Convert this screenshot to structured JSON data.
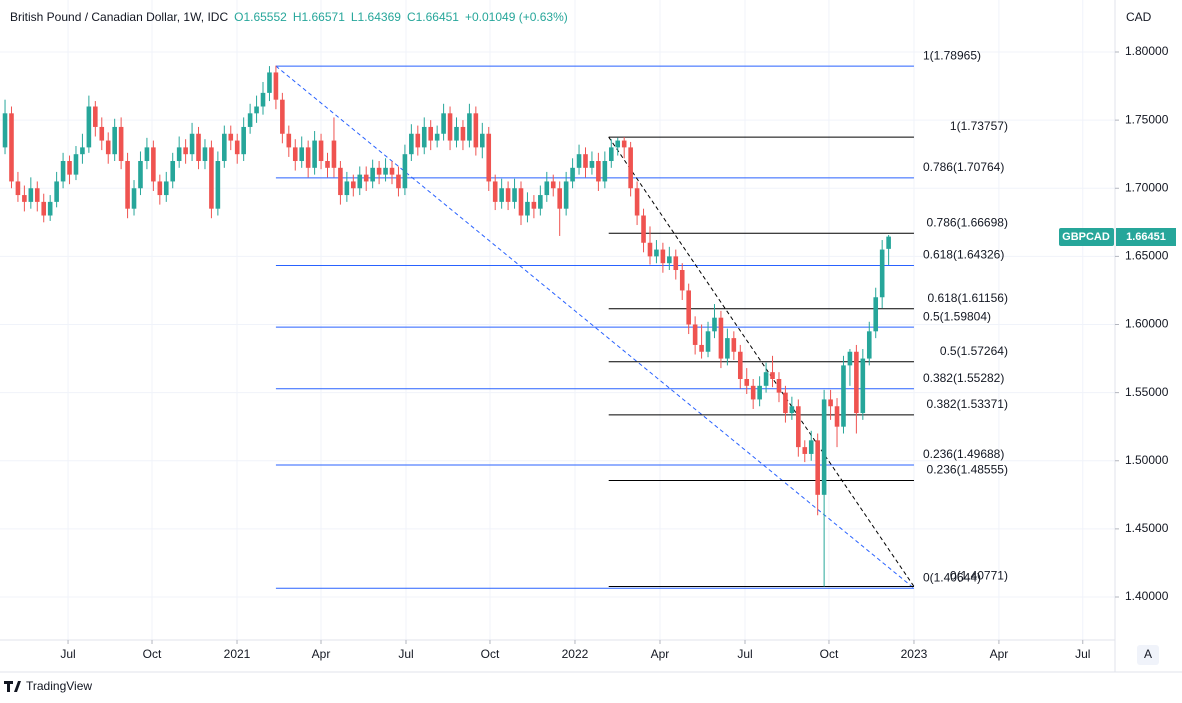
{
  "chart_data": {
    "type": "candlestick",
    "header": {
      "symbol": "British Pound / Canadian Dollar, 1W, IDC",
      "ohlc": [
        "O1.65552",
        "H1.66571",
        "L1.64369",
        "C1.66451",
        "+0.01049 (+0.63%)"
      ]
    },
    "currency": "CAD",
    "ticker": "GBPCAD",
    "last_price": {
      "value": 1.66451,
      "label": "1.66451"
    },
    "brand": "TradingView",
    "scale_button": "A",
    "up_color": "#26a69a",
    "down_color": "#ef5350",
    "grid": true,
    "xlim": [
      -0.78,
      172.1
    ],
    "xticks": [
      {
        "value": 9.77,
        "label": "Jul"
      },
      {
        "value": 22.79,
        "label": "Oct"
      },
      {
        "value": 35.97,
        "label": "2021"
      },
      {
        "value": 48.99,
        "label": "Apr"
      },
      {
        "value": 62.17,
        "label": "Jul"
      },
      {
        "value": 75.19,
        "label": "Oct"
      },
      {
        "value": 88.37,
        "label": "2022"
      },
      {
        "value": 101.55,
        "label": "Apr"
      },
      {
        "value": 114.73,
        "label": "Jul"
      },
      {
        "value": 127.75,
        "label": "Oct"
      },
      {
        "value": 140.93,
        "label": "2023"
      },
      {
        "value": 154.1,
        "label": "Apr"
      },
      {
        "value": 167.1,
        "label": "Jul"
      }
    ],
    "ylim": [
      1.36844,
      1.83817
    ],
    "yticks": [
      {
        "value": 1.4,
        "label": "1.40000"
      },
      {
        "value": 1.45,
        "label": "1.45000"
      },
      {
        "value": 1.5,
        "label": "1.50000"
      },
      {
        "value": 1.55,
        "label": "1.55000"
      },
      {
        "value": 1.6,
        "label": "1.60000"
      },
      {
        "value": 1.65,
        "label": "1.65000"
      },
      {
        "value": 1.7,
        "label": "1.70000"
      },
      {
        "value": 1.75,
        "label": "1.75000"
      },
      {
        "value": 1.8,
        "label": "1.80000"
      }
    ],
    "fib_retracements": [
      {
        "color": "#2962ff",
        "start": 42.0,
        "end": 140.93,
        "levels": [
          {
            "value": 1.78965,
            "label": "1(1.78965)"
          },
          {
            "value": 1.70764,
            "label": "0.786(1.70764)"
          },
          {
            "value": 1.64326,
            "label": "0.618(1.64326)"
          },
          {
            "value": 1.59804,
            "label": "0.5(1.59804)"
          },
          {
            "value": 1.55282,
            "label": "0.382(1.55282)"
          },
          {
            "value": 1.49688,
            "label": "0.236(1.49688)"
          },
          {
            "value": 1.40644,
            "label": "0(1.40644)"
          }
        ]
      },
      {
        "color": "#000000",
        "start": 93.6,
        "end": 140.93,
        "levels": [
          {
            "value": 1.73757,
            "label": "1(1.73757)"
          },
          {
            "value": 1.66698,
            "label": "0.786(1.66698)"
          },
          {
            "value": 1.61156,
            "label": "0.618(1.61156)"
          },
          {
            "value": 1.57264,
            "label": "0.5(1.57264)"
          },
          {
            "value": 1.53371,
            "label": "0.382(1.53371)"
          },
          {
            "value": 1.48555,
            "label": "0.236(1.48555)"
          },
          {
            "value": 1.40771,
            "label": "0(1.40771)"
          }
        ]
      }
    ],
    "ohlc": [
      [
        1.73,
        1.765,
        1.725,
        1.755
      ],
      [
        1.755,
        1.76,
        1.7,
        1.705
      ],
      [
        1.705,
        1.712,
        1.69,
        1.695
      ],
      [
        1.695,
        1.702,
        1.683,
        1.69
      ],
      [
        1.69,
        1.708,
        1.685,
        1.7
      ],
      [
        1.7,
        1.705,
        1.683,
        1.69
      ],
      [
        1.69,
        1.696,
        1.675,
        1.68
      ],
      [
        1.68,
        1.695,
        1.676,
        1.69
      ],
      [
        1.69,
        1.712,
        1.686,
        1.705
      ],
      [
        1.705,
        1.726,
        1.7,
        1.72
      ],
      [
        1.72,
        1.724,
        1.703,
        1.71
      ],
      [
        1.71,
        1.731,
        1.706,
        1.725
      ],
      [
        1.725,
        1.74,
        1.718,
        1.73
      ],
      [
        1.73,
        1.768,
        1.726,
        1.76
      ],
      [
        1.76,
        1.764,
        1.738,
        1.745
      ],
      [
        1.745,
        1.752,
        1.728,
        1.735
      ],
      [
        1.735,
        1.741,
        1.718,
        1.725
      ],
      [
        1.725,
        1.751,
        1.72,
        1.745
      ],
      [
        1.745,
        1.752,
        1.714,
        1.72
      ],
      [
        1.72,
        1.726,
        1.678,
        1.685
      ],
      [
        1.685,
        1.706,
        1.68,
        1.7
      ],
      [
        1.7,
        1.727,
        1.695,
        1.72
      ],
      [
        1.72,
        1.737,
        1.714,
        1.73
      ],
      [
        1.73,
        1.735,
        1.698,
        1.705
      ],
      [
        1.705,
        1.71,
        1.688,
        1.695
      ],
      [
        1.695,
        1.712,
        1.69,
        1.705
      ],
      [
        1.705,
        1.726,
        1.7,
        1.72
      ],
      [
        1.72,
        1.738,
        1.715,
        1.73
      ],
      [
        1.73,
        1.736,
        1.718,
        1.725
      ],
      [
        1.725,
        1.748,
        1.72,
        1.74
      ],
      [
        1.74,
        1.745,
        1.714,
        1.72
      ],
      [
        1.72,
        1.736,
        1.714,
        1.73
      ],
      [
        1.73,
        1.735,
        1.678,
        1.685
      ],
      [
        1.685,
        1.727,
        1.68,
        1.72
      ],
      [
        1.72,
        1.746,
        1.715,
        1.74
      ],
      [
        1.74,
        1.746,
        1.728,
        1.735
      ],
      [
        1.735,
        1.74,
        1.718,
        1.725
      ],
      [
        1.725,
        1.752,
        1.72,
        1.745
      ],
      [
        1.745,
        1.762,
        1.74,
        1.755
      ],
      [
        1.755,
        1.768,
        1.748,
        1.76
      ],
      [
        1.76,
        1.778,
        1.754,
        1.77
      ],
      [
        1.77,
        1.78965,
        1.764,
        1.785
      ],
      [
        1.785,
        1.79,
        1.758,
        1.765
      ],
      [
        1.765,
        1.77,
        1.733,
        1.74
      ],
      [
        1.74,
        1.746,
        1.723,
        1.73
      ],
      [
        1.73,
        1.736,
        1.713,
        1.72
      ],
      [
        1.72,
        1.738,
        1.715,
        1.73
      ],
      [
        1.73,
        1.735,
        1.708,
        1.715
      ],
      [
        1.715,
        1.742,
        1.71,
        1.735
      ],
      [
        1.735,
        1.74,
        1.714,
        1.72
      ],
      [
        1.72,
        1.726,
        1.708,
        1.715
      ],
      [
        1.735,
        1.752,
        1.708,
        1.715
      ],
      [
        1.715,
        1.72,
        1.688,
        1.695
      ],
      [
        1.695,
        1.712,
        1.69,
        1.705
      ],
      [
        1.705,
        1.71,
        1.694,
        1.7
      ],
      [
        1.7,
        1.716,
        1.695,
        1.71
      ],
      [
        1.71,
        1.716,
        1.698,
        1.705
      ],
      [
        1.705,
        1.721,
        1.7,
        1.715
      ],
      [
        1.715,
        1.72,
        1.703,
        1.71
      ],
      [
        1.71,
        1.722,
        1.705,
        1.715
      ],
      [
        1.715,
        1.72,
        1.703,
        1.71
      ],
      [
        1.71,
        1.716,
        1.694,
        1.7
      ],
      [
        1.7,
        1.732,
        1.695,
        1.725
      ],
      [
        1.725,
        1.747,
        1.72,
        1.74
      ],
      [
        1.74,
        1.746,
        1.724,
        1.73
      ],
      [
        1.73,
        1.752,
        1.725,
        1.745
      ],
      [
        1.745,
        1.75,
        1.728,
        1.735
      ],
      [
        1.735,
        1.746,
        1.73,
        1.74
      ],
      [
        1.74,
        1.762,
        1.735,
        1.755
      ],
      [
        1.755,
        1.76,
        1.728,
        1.735
      ],
      [
        1.735,
        1.752,
        1.73,
        1.745
      ],
      [
        1.745,
        1.75,
        1.728,
        1.735
      ],
      [
        1.735,
        1.762,
        1.73,
        1.755
      ],
      [
        1.755,
        1.76,
        1.724,
        1.73
      ],
      [
        1.73,
        1.748,
        1.722,
        1.74
      ],
      [
        1.74,
        1.745,
        1.698,
        1.705
      ],
      [
        1.705,
        1.71,
        1.684,
        1.69
      ],
      [
        1.69,
        1.707,
        1.685,
        1.7
      ],
      [
        1.7,
        1.705,
        1.684,
        1.69
      ],
      [
        1.69,
        1.707,
        1.685,
        1.7
      ],
      [
        1.7,
        1.705,
        1.673,
        1.68
      ],
      [
        1.68,
        1.697,
        1.675,
        1.69
      ],
      [
        1.69,
        1.695,
        1.678,
        1.685
      ],
      [
        1.685,
        1.702,
        1.68,
        1.695
      ],
      [
        1.695,
        1.712,
        1.69,
        1.705
      ],
      [
        1.705,
        1.71,
        1.694,
        1.7
      ],
      [
        1.7,
        1.705,
        1.665,
        1.685
      ],
      [
        1.685,
        1.712,
        1.68,
        1.705
      ],
      [
        1.705,
        1.722,
        1.7,
        1.715
      ],
      [
        1.715,
        1.732,
        1.71,
        1.725
      ],
      [
        1.725,
        1.73,
        1.708,
        1.715
      ],
      [
        1.715,
        1.727,
        1.71,
        1.72
      ],
      [
        1.72,
        1.726,
        1.698,
        1.705
      ],
      [
        1.705,
        1.727,
        1.7,
        1.72
      ],
      [
        1.72,
        1.736,
        1.715,
        1.73
      ],
      [
        1.73,
        1.737,
        1.724,
        1.735
      ],
      [
        1.735,
        1.73757,
        1.722,
        1.73
      ],
      [
        1.73,
        1.734,
        1.694,
        1.7
      ],
      [
        1.7,
        1.705,
        1.673,
        1.68
      ],
      [
        1.68,
        1.685,
        1.653,
        1.66
      ],
      [
        1.66,
        1.672,
        1.644,
        1.65
      ],
      [
        1.65,
        1.662,
        1.645,
        1.655
      ],
      [
        1.655,
        1.66,
        1.638,
        1.645
      ],
      [
        1.645,
        1.657,
        1.64,
        1.65
      ],
      [
        1.65,
        1.655,
        1.633,
        1.64
      ],
      [
        1.64,
        1.645,
        1.618,
        1.625
      ],
      [
        1.625,
        1.63,
        1.593,
        1.6
      ],
      [
        1.6,
        1.606,
        1.578,
        1.585
      ],
      [
        1.585,
        1.6,
        1.575,
        1.58
      ],
      [
        1.58,
        1.602,
        1.576,
        1.595
      ],
      [
        1.595,
        1.615,
        1.59,
        1.605
      ],
      [
        1.605,
        1.61,
        1.568,
        1.575
      ],
      [
        1.575,
        1.597,
        1.57,
        1.59
      ],
      [
        1.59,
        1.595,
        1.574,
        1.58
      ],
      [
        1.58,
        1.585,
        1.553,
        1.56
      ],
      [
        1.56,
        1.568,
        1.549,
        1.555
      ],
      [
        1.555,
        1.56,
        1.538,
        1.545
      ],
      [
        1.545,
        1.562,
        1.54,
        1.555
      ],
      [
        1.555,
        1.572,
        1.55,
        1.565
      ],
      [
        1.565,
        1.577,
        1.554,
        1.56
      ],
      [
        1.56,
        1.565,
        1.543,
        1.55
      ],
      [
        1.55,
        1.555,
        1.528,
        1.535
      ],
      [
        1.535,
        1.547,
        1.53,
        1.54
      ],
      [
        1.54,
        1.545,
        1.503,
        1.51
      ],
      [
        1.51,
        1.515,
        1.499,
        1.505
      ],
      [
        1.505,
        1.522,
        1.5,
        1.515
      ],
      [
        1.515,
        1.52,
        1.46,
        1.475
      ],
      [
        1.475,
        1.552,
        1.40771,
        1.545
      ],
      [
        1.545,
        1.552,
        1.53,
        1.54
      ],
      [
        1.54,
        1.546,
        1.51,
        1.525
      ],
      [
        1.525,
        1.577,
        1.52,
        1.57
      ],
      [
        1.57,
        1.582,
        1.555,
        1.58
      ],
      [
        1.58,
        1.585,
        1.52,
        1.535
      ],
      [
        1.535,
        1.582,
        1.53,
        1.575
      ],
      [
        1.575,
        1.602,
        1.57,
        1.595
      ],
      [
        1.595,
        1.627,
        1.59,
        1.62
      ],
      [
        1.62,
        1.662,
        1.612,
        1.655
      ],
      [
        1.65552,
        1.66571,
        1.64369,
        1.66451
      ]
    ]
  }
}
